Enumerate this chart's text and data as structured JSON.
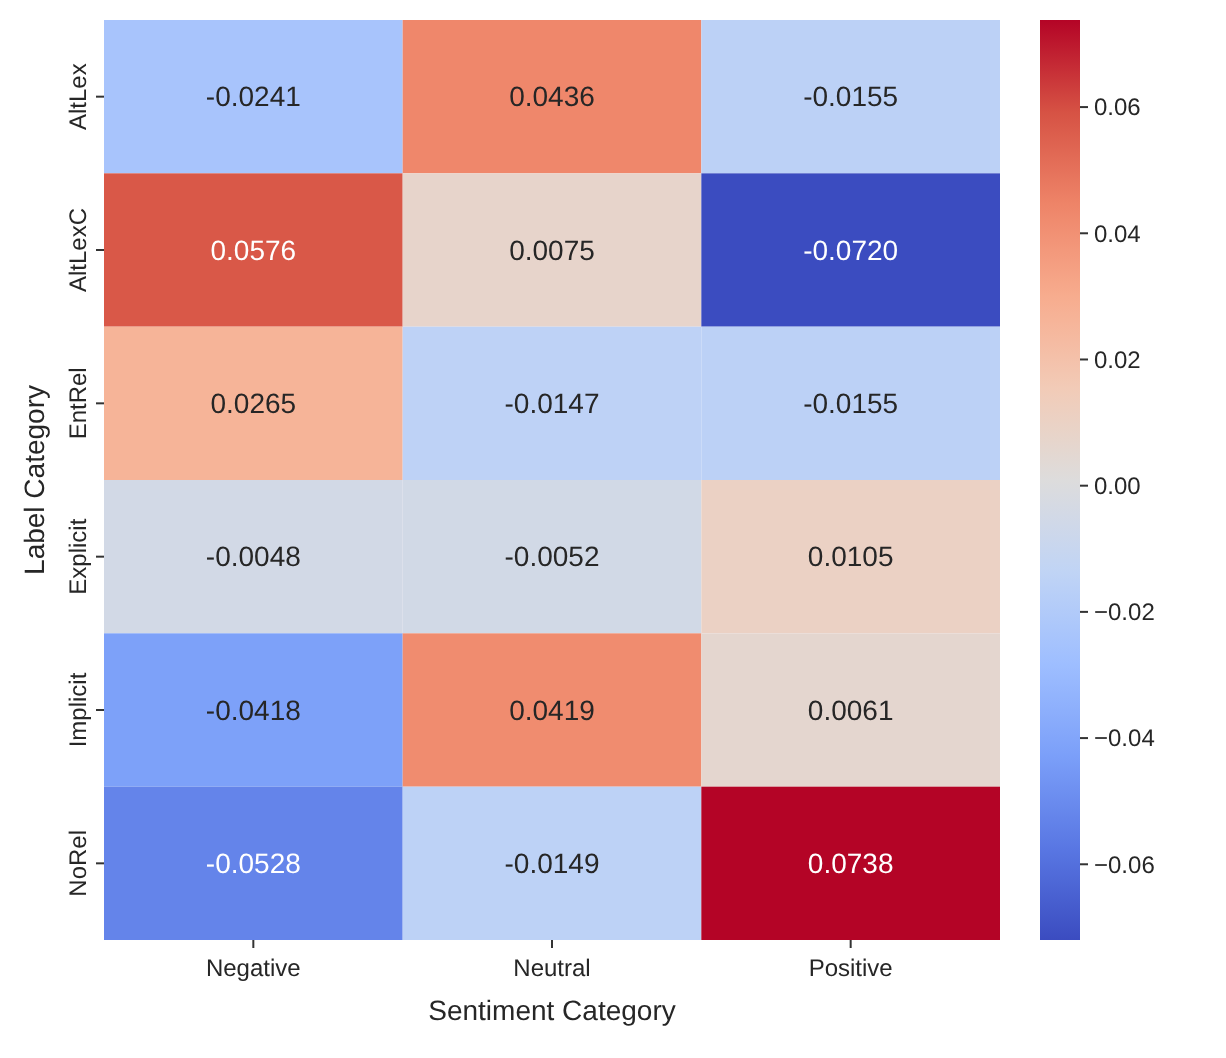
{
  "chart_data": {
    "type": "heatmap",
    "xlabel": "Sentiment Category",
    "ylabel": "Label Category",
    "categories": [
      "Negative",
      "Neutral",
      "Positive"
    ],
    "y_categories": [
      "AltLex",
      "AltLexC",
      "EntRel",
      "Explicit",
      "Implicit",
      "NoRel"
    ],
    "cells": [
      [
        -0.0241,
        0.0436,
        -0.0155
      ],
      [
        0.0576,
        0.0075,
        -0.072
      ],
      [
        0.0265,
        -0.0147,
        -0.0155
      ],
      [
        -0.0048,
        -0.0052,
        0.0105
      ],
      [
        -0.0418,
        0.0419,
        0.0061
      ],
      [
        -0.0528,
        -0.0149,
        0.0738
      ]
    ],
    "cell_labels": [
      [
        "-0.0241",
        "0.0436",
        "-0.0155"
      ],
      [
        "0.0576",
        "0.0075",
        "-0.0720"
      ],
      [
        "0.0265",
        "-0.0147",
        "-0.0155"
      ],
      [
        "-0.0048",
        "-0.0052",
        "0.0105"
      ],
      [
        "-0.0418",
        "0.0419",
        "0.0061"
      ],
      [
        "-0.0528",
        "-0.0149",
        "0.0738"
      ]
    ],
    "clim": [
      -0.072,
      0.0738
    ],
    "cticks": [
      0.06,
      0.04,
      0.02,
      {
        "value": 0,
        "label": "0.00"
      },
      {
        "value": -0.02,
        "label": "−0.02"
      },
      {
        "value": -0.04,
        "label": "−0.04"
      },
      {
        "value": -0.06,
        "label": "−0.06"
      }
    ]
  }
}
